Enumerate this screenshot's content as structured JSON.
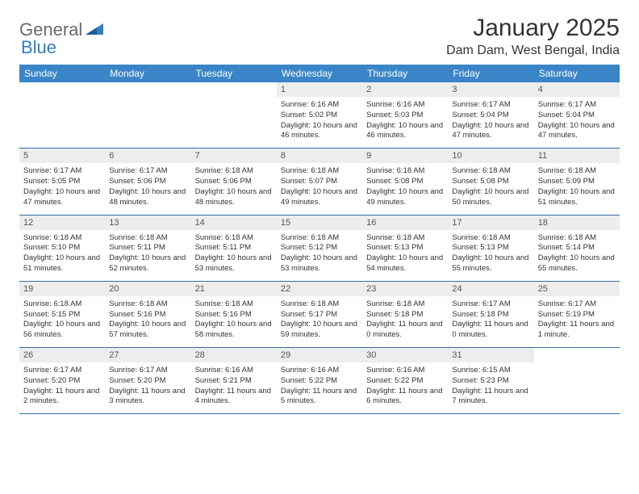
{
  "logo": {
    "text1": "General",
    "text2": "Blue",
    "icon_color": "#2f7fc1"
  },
  "title": "January 2025",
  "subtitle": "Dam Dam, West Bengal, India",
  "colors": {
    "header_bg": "#3a85c7",
    "header_text": "#ffffff",
    "daynum_bg": "#ededed",
    "daynum_text": "#555555",
    "body_text": "#333333",
    "row_border": "#2f6ea8",
    "page_bg": "#ffffff"
  },
  "typography": {
    "title_fontsize": 30,
    "subtitle_fontsize": 16,
    "header_fontsize": 12,
    "daynum_fontsize": 11,
    "cell_fontsize": 9.5
  },
  "weekdays": [
    "Sunday",
    "Monday",
    "Tuesday",
    "Wednesday",
    "Thursday",
    "Friday",
    "Saturday"
  ],
  "weeks": [
    [
      {
        "n": "",
        "sr": "",
        "ss": "",
        "dl": ""
      },
      {
        "n": "",
        "sr": "",
        "ss": "",
        "dl": ""
      },
      {
        "n": "",
        "sr": "",
        "ss": "",
        "dl": ""
      },
      {
        "n": "1",
        "sr": "Sunrise: 6:16 AM",
        "ss": "Sunset: 5:02 PM",
        "dl": "Daylight: 10 hours and 46 minutes."
      },
      {
        "n": "2",
        "sr": "Sunrise: 6:16 AM",
        "ss": "Sunset: 5:03 PM",
        "dl": "Daylight: 10 hours and 46 minutes."
      },
      {
        "n": "3",
        "sr": "Sunrise: 6:17 AM",
        "ss": "Sunset: 5:04 PM",
        "dl": "Daylight: 10 hours and 47 minutes."
      },
      {
        "n": "4",
        "sr": "Sunrise: 6:17 AM",
        "ss": "Sunset: 5:04 PM",
        "dl": "Daylight: 10 hours and 47 minutes."
      }
    ],
    [
      {
        "n": "5",
        "sr": "Sunrise: 6:17 AM",
        "ss": "Sunset: 5:05 PM",
        "dl": "Daylight: 10 hours and 47 minutes."
      },
      {
        "n": "6",
        "sr": "Sunrise: 6:17 AM",
        "ss": "Sunset: 5:06 PM",
        "dl": "Daylight: 10 hours and 48 minutes."
      },
      {
        "n": "7",
        "sr": "Sunrise: 6:18 AM",
        "ss": "Sunset: 5:06 PM",
        "dl": "Daylight: 10 hours and 48 minutes."
      },
      {
        "n": "8",
        "sr": "Sunrise: 6:18 AM",
        "ss": "Sunset: 5:07 PM",
        "dl": "Daylight: 10 hours and 49 minutes."
      },
      {
        "n": "9",
        "sr": "Sunrise: 6:18 AM",
        "ss": "Sunset: 5:08 PM",
        "dl": "Daylight: 10 hours and 49 minutes."
      },
      {
        "n": "10",
        "sr": "Sunrise: 6:18 AM",
        "ss": "Sunset: 5:08 PM",
        "dl": "Daylight: 10 hours and 50 minutes."
      },
      {
        "n": "11",
        "sr": "Sunrise: 6:18 AM",
        "ss": "Sunset: 5:09 PM",
        "dl": "Daylight: 10 hours and 51 minutes."
      }
    ],
    [
      {
        "n": "12",
        "sr": "Sunrise: 6:18 AM",
        "ss": "Sunset: 5:10 PM",
        "dl": "Daylight: 10 hours and 51 minutes."
      },
      {
        "n": "13",
        "sr": "Sunrise: 6:18 AM",
        "ss": "Sunset: 5:11 PM",
        "dl": "Daylight: 10 hours and 52 minutes."
      },
      {
        "n": "14",
        "sr": "Sunrise: 6:18 AM",
        "ss": "Sunset: 5:11 PM",
        "dl": "Daylight: 10 hours and 53 minutes."
      },
      {
        "n": "15",
        "sr": "Sunrise: 6:18 AM",
        "ss": "Sunset: 5:12 PM",
        "dl": "Daylight: 10 hours and 53 minutes."
      },
      {
        "n": "16",
        "sr": "Sunrise: 6:18 AM",
        "ss": "Sunset: 5:13 PM",
        "dl": "Daylight: 10 hours and 54 minutes."
      },
      {
        "n": "17",
        "sr": "Sunrise: 6:18 AM",
        "ss": "Sunset: 5:13 PM",
        "dl": "Daylight: 10 hours and 55 minutes."
      },
      {
        "n": "18",
        "sr": "Sunrise: 6:18 AM",
        "ss": "Sunset: 5:14 PM",
        "dl": "Daylight: 10 hours and 55 minutes."
      }
    ],
    [
      {
        "n": "19",
        "sr": "Sunrise: 6:18 AM",
        "ss": "Sunset: 5:15 PM",
        "dl": "Daylight: 10 hours and 56 minutes."
      },
      {
        "n": "20",
        "sr": "Sunrise: 6:18 AM",
        "ss": "Sunset: 5:16 PM",
        "dl": "Daylight: 10 hours and 57 minutes."
      },
      {
        "n": "21",
        "sr": "Sunrise: 6:18 AM",
        "ss": "Sunset: 5:16 PM",
        "dl": "Daylight: 10 hours and 58 minutes."
      },
      {
        "n": "22",
        "sr": "Sunrise: 6:18 AM",
        "ss": "Sunset: 5:17 PM",
        "dl": "Daylight: 10 hours and 59 minutes."
      },
      {
        "n": "23",
        "sr": "Sunrise: 6:18 AM",
        "ss": "Sunset: 5:18 PM",
        "dl": "Daylight: 11 hours and 0 minutes."
      },
      {
        "n": "24",
        "sr": "Sunrise: 6:17 AM",
        "ss": "Sunset: 5:18 PM",
        "dl": "Daylight: 11 hours and 0 minutes."
      },
      {
        "n": "25",
        "sr": "Sunrise: 6:17 AM",
        "ss": "Sunset: 5:19 PM",
        "dl": "Daylight: 11 hours and 1 minute."
      }
    ],
    [
      {
        "n": "26",
        "sr": "Sunrise: 6:17 AM",
        "ss": "Sunset: 5:20 PM",
        "dl": "Daylight: 11 hours and 2 minutes."
      },
      {
        "n": "27",
        "sr": "Sunrise: 6:17 AM",
        "ss": "Sunset: 5:20 PM",
        "dl": "Daylight: 11 hours and 3 minutes."
      },
      {
        "n": "28",
        "sr": "Sunrise: 6:16 AM",
        "ss": "Sunset: 5:21 PM",
        "dl": "Daylight: 11 hours and 4 minutes."
      },
      {
        "n": "29",
        "sr": "Sunrise: 6:16 AM",
        "ss": "Sunset: 5:22 PM",
        "dl": "Daylight: 11 hours and 5 minutes."
      },
      {
        "n": "30",
        "sr": "Sunrise: 6:16 AM",
        "ss": "Sunset: 5:22 PM",
        "dl": "Daylight: 11 hours and 6 minutes."
      },
      {
        "n": "31",
        "sr": "Sunrise: 6:15 AM",
        "ss": "Sunset: 5:23 PM",
        "dl": "Daylight: 11 hours and 7 minutes."
      },
      {
        "n": "",
        "sr": "",
        "ss": "",
        "dl": ""
      }
    ]
  ]
}
